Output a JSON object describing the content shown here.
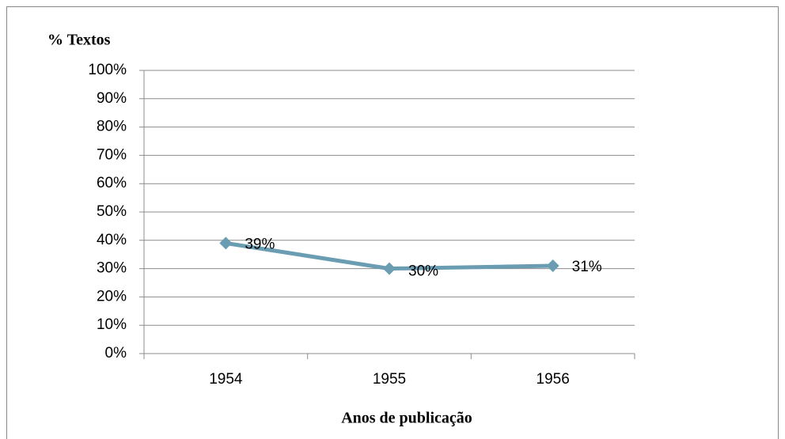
{
  "chart_data": {
    "type": "line",
    "y_label": "% Textos",
    "x_label": "Anos de publicação",
    "categories": [
      "1954",
      "1955",
      "1956"
    ],
    "values": [
      39,
      30,
      31
    ],
    "value_labels": [
      "39%",
      "30%",
      "31%"
    ],
    "color": "#6a9db2",
    "ylim": [
      0,
      100
    ],
    "yticks": [
      {
        "value": 0,
        "label": "0%"
      },
      {
        "value": 10,
        "label": "10%"
      },
      {
        "value": 20,
        "label": "20%"
      },
      {
        "value": 30,
        "label": "30%"
      },
      {
        "value": 40,
        "label": "40%"
      },
      {
        "value": 50,
        "label": "50%"
      },
      {
        "value": 60,
        "label": "60%"
      },
      {
        "value": 70,
        "label": "70%"
      },
      {
        "value": 80,
        "label": "80%"
      },
      {
        "value": 90,
        "label": "90%"
      },
      {
        "value": 100,
        "label": "100%"
      }
    ],
    "grid": true
  }
}
